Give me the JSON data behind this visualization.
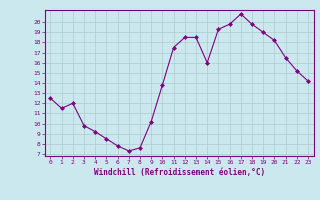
{
  "x": [
    0,
    1,
    2,
    3,
    4,
    5,
    6,
    7,
    8,
    9,
    10,
    11,
    12,
    13,
    14,
    15,
    16,
    17,
    18,
    19,
    20,
    21,
    22,
    23
  ],
  "y": [
    12.5,
    11.5,
    12.0,
    9.8,
    9.2,
    8.5,
    7.8,
    7.3,
    7.6,
    10.2,
    13.8,
    17.5,
    18.5,
    18.5,
    16.0,
    19.3,
    19.8,
    20.8,
    19.8,
    19.0,
    18.2,
    16.5,
    15.2,
    14.2
  ],
  "line_color": "#800080",
  "marker": "D",
  "marker_size": 2,
  "bg_color": "#cce8ef",
  "grid_color": "#aacccc",
  "xlabel": "Windchill (Refroidissement éolien,°C)",
  "xlim": [
    -0.5,
    23.5
  ],
  "ylim": [
    6.8,
    21.2
  ],
  "yticks": [
    7,
    8,
    9,
    10,
    11,
    12,
    13,
    14,
    15,
    16,
    17,
    18,
    19,
    20
  ],
  "xticks": [
    0,
    1,
    2,
    3,
    4,
    5,
    6,
    7,
    8,
    9,
    10,
    11,
    12,
    13,
    14,
    15,
    16,
    17,
    18,
    19,
    20,
    21,
    22,
    23
  ],
  "tick_color": "#800080",
  "label_color": "#800080",
  "spine_color": "#800080"
}
